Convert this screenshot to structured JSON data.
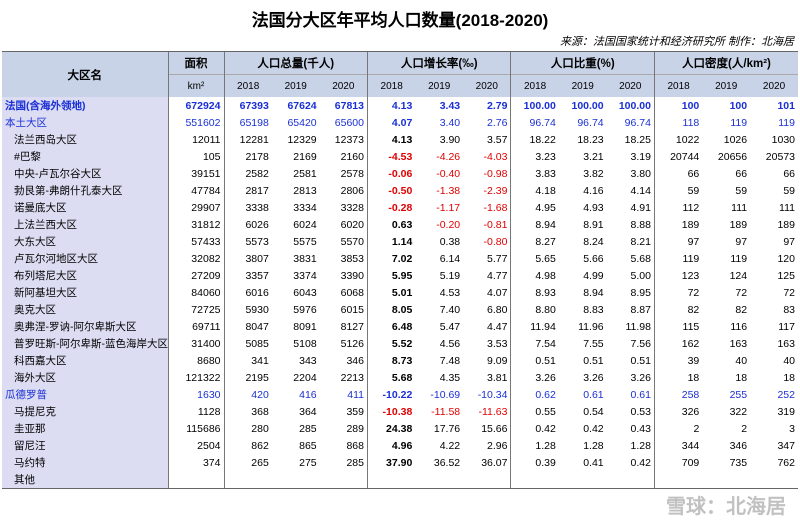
{
  "title": "法国分大区年平均人口数量(2018-2020)",
  "source": "来源：法国国家统计和经济研究所 制作：北海居",
  "watermark": "雪球：北海居",
  "table": {
    "header": {
      "name": "大区名",
      "area": "面积",
      "area_unit": "km²",
      "groups": [
        {
          "label": "人口总量(千人)",
          "years": [
            "2018",
            "2019",
            "2020"
          ]
        },
        {
          "label": "人口增长率(‰)",
          "years": [
            "2018",
            "2019",
            "2020"
          ]
        },
        {
          "label": "人口比重(%)",
          "years": [
            "2018",
            "2019",
            "2020"
          ]
        },
        {
          "label": "人口密度(人/km²)",
          "years": [
            "2018",
            "2019",
            "2020"
          ]
        }
      ]
    },
    "rows": [
      {
        "name": "法国(含海外领地)",
        "cells": [
          "672924",
          "67393",
          "67624",
          "67813",
          "4.13",
          "3.43",
          "2.79",
          "100.00",
          "100.00",
          "100.00",
          "100",
          "100",
          "101"
        ]
      },
      {
        "name": "本土大区",
        "cells": [
          "551602",
          "65198",
          "65420",
          "65600",
          "4.07",
          "3.40",
          "2.76",
          "96.74",
          "96.74",
          "96.74",
          "118",
          "119",
          "119"
        ]
      },
      {
        "name": "法兰西岛大区",
        "cells": [
          "12011",
          "12281",
          "12329",
          "12373",
          "4.13",
          "3.90",
          "3.57",
          "18.22",
          "18.23",
          "18.25",
          "1022",
          "1026",
          "1030"
        ]
      },
      {
        "name": "#巴黎",
        "cells": [
          "105",
          "2178",
          "2169",
          "2160",
          "-4.53",
          "-4.26",
          "-4.03",
          "3.23",
          "3.21",
          "3.19",
          "20744",
          "20656",
          "20573"
        ]
      },
      {
        "name": "中央-卢瓦尔谷大区",
        "cells": [
          "39151",
          "2582",
          "2581",
          "2578",
          "-0.06",
          "-0.40",
          "-0.98",
          "3.83",
          "3.82",
          "3.80",
          "66",
          "66",
          "66"
        ]
      },
      {
        "name": "勃艮第-弗朗什孔泰大区",
        "cells": [
          "47784",
          "2817",
          "2813",
          "2806",
          "-0.50",
          "-1.38",
          "-2.39",
          "4.18",
          "4.16",
          "4.14",
          "59",
          "59",
          "59"
        ]
      },
      {
        "name": "诺曼底大区",
        "cells": [
          "29907",
          "3338",
          "3334",
          "3328",
          "-0.28",
          "-1.17",
          "-1.68",
          "4.95",
          "4.93",
          "4.91",
          "112",
          "111",
          "111"
        ]
      },
      {
        "name": "上法兰西大区",
        "cells": [
          "31812",
          "6026",
          "6024",
          "6020",
          "0.63",
          "-0.20",
          "-0.81",
          "8.94",
          "8.91",
          "8.88",
          "189",
          "189",
          "189"
        ]
      },
      {
        "name": "大东大区",
        "cells": [
          "57433",
          "5573",
          "5575",
          "5570",
          "1.14",
          "0.38",
          "-0.80",
          "8.27",
          "8.24",
          "8.21",
          "97",
          "97",
          "97"
        ]
      },
      {
        "name": "卢瓦尔河地区大区",
        "cells": [
          "32082",
          "3807",
          "3831",
          "3853",
          "7.02",
          "6.14",
          "5.77",
          "5.65",
          "5.66",
          "5.68",
          "119",
          "119",
          "120"
        ]
      },
      {
        "name": "布列塔尼大区",
        "cells": [
          "27209",
          "3357",
          "3374",
          "3390",
          "5.95",
          "5.19",
          "4.77",
          "4.98",
          "4.99",
          "5.00",
          "123",
          "124",
          "125"
        ]
      },
      {
        "name": "新阿基坦大区",
        "cells": [
          "84060",
          "6016",
          "6043",
          "6068",
          "5.01",
          "4.53",
          "4.07",
          "8.93",
          "8.94",
          "8.95",
          "72",
          "72",
          "72"
        ]
      },
      {
        "name": "奥克大区",
        "cells": [
          "72725",
          "5930",
          "5976",
          "6015",
          "8.05",
          "7.40",
          "6.80",
          "8.80",
          "8.83",
          "8.87",
          "82",
          "82",
          "83"
        ]
      },
      {
        "name": "奥弗涅-罗讷-阿尔卑斯大区",
        "cells": [
          "69711",
          "8047",
          "8091",
          "8127",
          "6.48",
          "5.47",
          "4.47",
          "11.94",
          "11.96",
          "11.98",
          "115",
          "116",
          "117"
        ]
      },
      {
        "name": "普罗旺斯-阿尔卑斯-蓝色海岸大区",
        "cells": [
          "31400",
          "5085",
          "5108",
          "5126",
          "5.52",
          "4.56",
          "3.53",
          "7.54",
          "7.55",
          "7.56",
          "162",
          "163",
          "163"
        ]
      },
      {
        "name": "科西嘉大区",
        "cells": [
          "8680",
          "341",
          "343",
          "346",
          "8.73",
          "7.48",
          "9.09",
          "0.51",
          "0.51",
          "0.51",
          "39",
          "40",
          "40"
        ]
      },
      {
        "name": "海外大区",
        "cells": [
          "121322",
          "2195",
          "2204",
          "2213",
          "5.68",
          "4.35",
          "3.81",
          "3.26",
          "3.26",
          "3.26",
          "18",
          "18",
          "18"
        ]
      },
      {
        "name": "瓜德罗普",
        "cells": [
          "1630",
          "420",
          "416",
          "411",
          "-10.22",
          "-10.69",
          "-10.34",
          "0.62",
          "0.61",
          "0.61",
          "258",
          "255",
          "252"
        ]
      },
      {
        "name": "马提尼克",
        "cells": [
          "1128",
          "368",
          "364",
          "359",
          "-10.38",
          "-11.58",
          "-11.63",
          "0.55",
          "0.54",
          "0.53",
          "326",
          "322",
          "319"
        ]
      },
      {
        "name": "圭亚那",
        "cells": [
          "115686",
          "280",
          "285",
          "289",
          "24.38",
          "17.76",
          "15.66",
          "0.42",
          "0.42",
          "0.43",
          "2",
          "2",
          "3"
        ]
      },
      {
        "name": "留尼汪",
        "cells": [
          "2504",
          "862",
          "865",
          "868",
          "4.96",
          "4.22",
          "2.96",
          "1.28",
          "1.28",
          "1.28",
          "344",
          "346",
          "347"
        ]
      },
      {
        "name": "马约特",
        "cells": [
          "374",
          "265",
          "275",
          "285",
          "37.90",
          "36.52",
          "36.07",
          "0.39",
          "0.41",
          "0.42",
          "709",
          "735",
          "762"
        ]
      },
      {
        "name": "其他",
        "cells": []
      }
    ]
  }
}
